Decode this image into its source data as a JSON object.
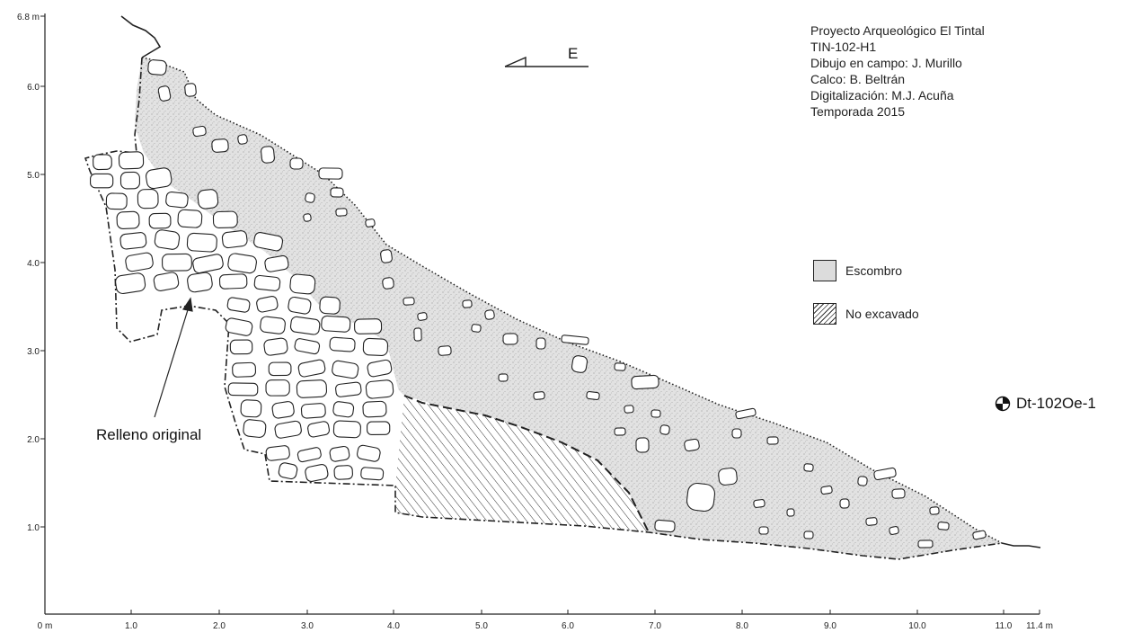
{
  "credits": {
    "lines": [
      "Proyecto Arqueológico El Tintal",
      "TIN-102-H1",
      "Dibujo en campo: J. Murillo",
      "Calco: B. Beltrán",
      "Digitalización: M.J. Acuña",
      "Temporada 2015"
    ]
  },
  "orientation": {
    "label": "E"
  },
  "legend": {
    "items": [
      {
        "label": "Escombro",
        "pattern": "stippled-fill"
      },
      {
        "label": "No excavado",
        "pattern": "diagonal-hatch"
      }
    ]
  },
  "annotations": {
    "fill_label": "Relleno original",
    "datum_label": "Dt-102Oe-1",
    "datum_icon": "survey-datum-icon"
  },
  "axes": {
    "x_ticks": [
      "0 m",
      "1.0",
      "2.0",
      "3.0",
      "4.0",
      "5.0",
      "6.0",
      "7.0",
      "8.0",
      "9.0",
      "10.0",
      "11.0",
      "11.4 m"
    ],
    "y_ticks": [
      "1.0",
      "2.0",
      "3.0",
      "4.0",
      "5.0",
      "6.0",
      "6.8 m"
    ]
  },
  "colors": {
    "rubble_fill": "#dcdcdc",
    "line": "#222222"
  }
}
